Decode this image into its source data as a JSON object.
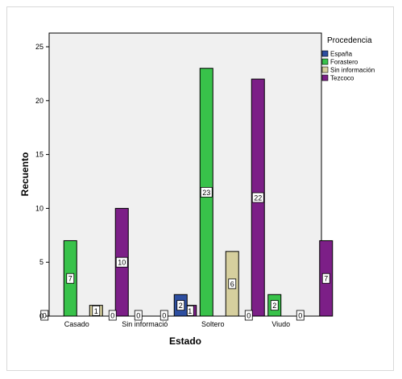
{
  "chart_data": {
    "type": "bar",
    "title": "",
    "xlabel": "Estado",
    "ylabel": "Recuento",
    "ylim": [
      0,
      25
    ],
    "yticks": [
      0,
      5,
      10,
      15,
      20,
      25
    ],
    "grid": false,
    "categories": [
      "Casado",
      "Sin informació",
      "Soltero",
      "Viudo"
    ],
    "legend": {
      "title": "Procedencia",
      "placement": "right"
    },
    "series": [
      {
        "name": "España",
        "color": "#2d4ea0",
        "values": [
          0,
          0,
          2,
          0
        ]
      },
      {
        "name": "Forastero",
        "color": "#38c24a",
        "values": [
          7,
          0,
          23,
          2
        ]
      },
      {
        "name": "Sin información",
        "color": "#d6cf9e",
        "values": [
          1,
          0,
          6,
          0
        ]
      },
      {
        "name": "Tezcoco",
        "color": "#7c1f87",
        "values": [
          10,
          1,
          22,
          7
        ]
      }
    ]
  }
}
